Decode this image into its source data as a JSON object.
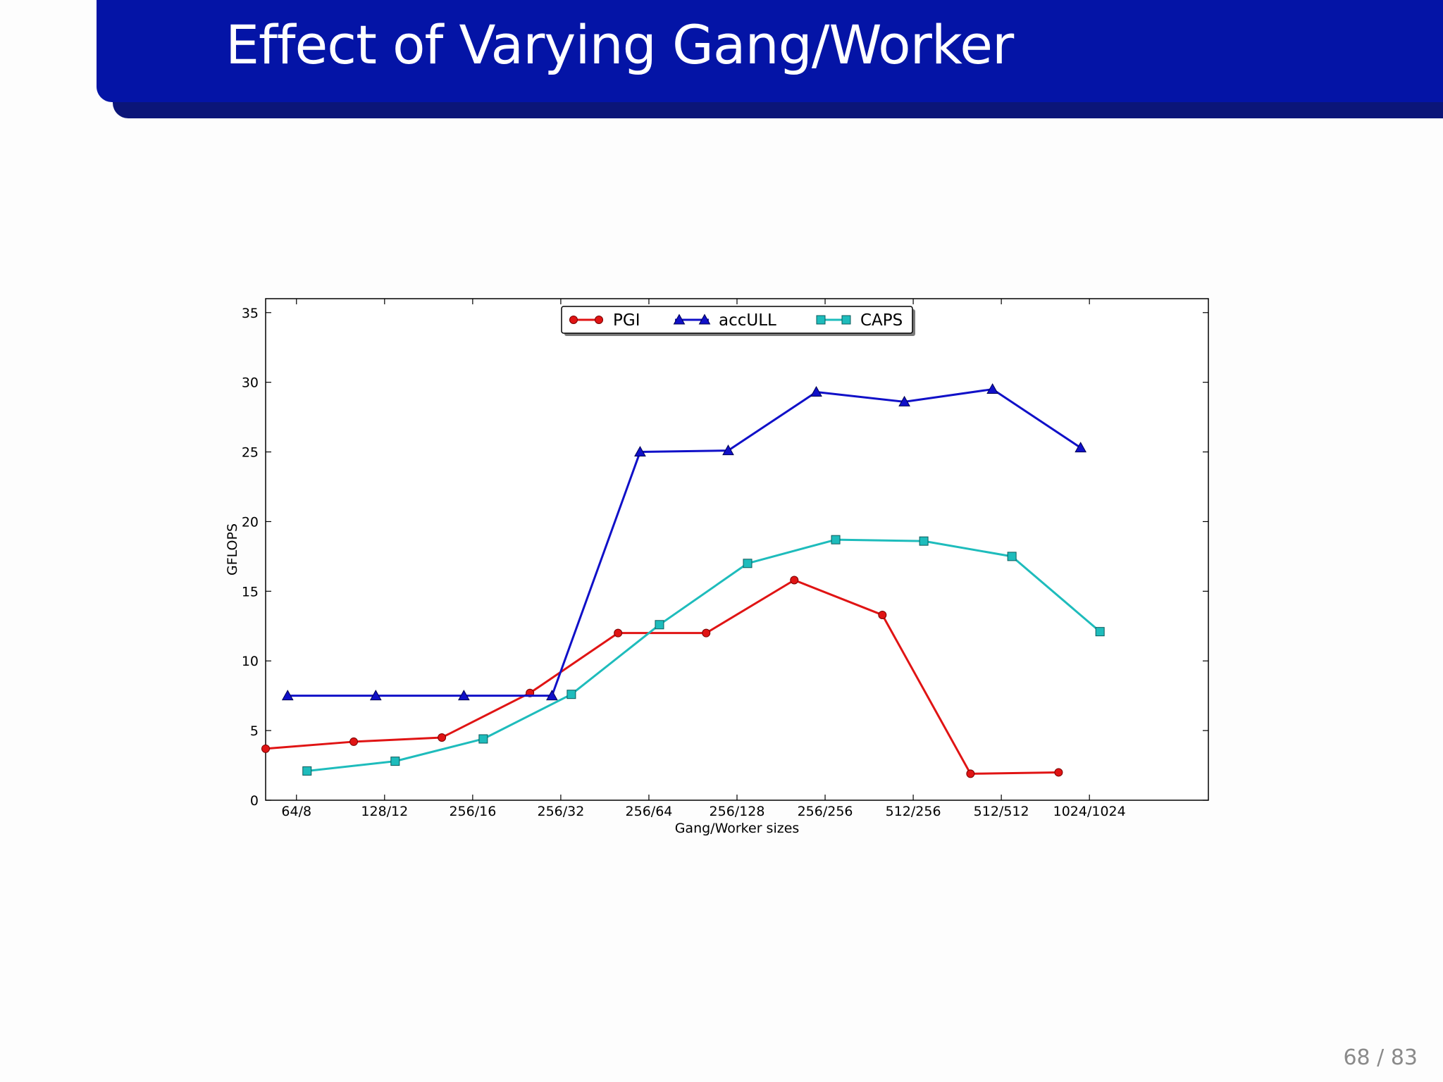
{
  "slide": {
    "title": "Effect of Varying Gang/Worker",
    "page_number": "68 / 83"
  },
  "colors": {
    "header": "#0414a6",
    "header_shadow": "#0b1578",
    "PGI": "#e01414",
    "accULL": "#1010c8",
    "CAPS": "#1ebcbc"
  },
  "chart_data": {
    "type": "line",
    "title": "",
    "xlabel": "Gang/Worker sizes",
    "ylabel": "GFLOPS",
    "ylim": [
      0,
      36
    ],
    "yticks": [
      0,
      5,
      10,
      15,
      20,
      25,
      30,
      35
    ],
    "xlim": [
      -0.35,
      10.35
    ],
    "categories": [
      "64/8",
      "128/12",
      "256/16",
      "256/32",
      "256/64",
      "256/128",
      "256/256",
      "512/256",
      "512/512",
      "1024/1024"
    ],
    "grid": false,
    "legend_position": "top-center",
    "series": [
      {
        "name": "PGI",
        "marker": "circle",
        "x_offset": -0.35,
        "values": [
          3.7,
          4.2,
          4.5,
          7.7,
          12.0,
          12.0,
          15.8,
          13.3,
          1.9,
          2.0
        ]
      },
      {
        "name": "accULL",
        "marker": "triangle",
        "x_offset": -0.1,
        "values": [
          7.5,
          7.5,
          7.5,
          7.5,
          25.0,
          25.1,
          29.3,
          28.6,
          29.5,
          25.3
        ]
      },
      {
        "name": "CAPS",
        "marker": "square",
        "x_offset": 0.12,
        "values": [
          2.1,
          2.8,
          4.4,
          7.6,
          12.6,
          17.0,
          18.7,
          18.6,
          17.5,
          12.1
        ]
      }
    ]
  }
}
